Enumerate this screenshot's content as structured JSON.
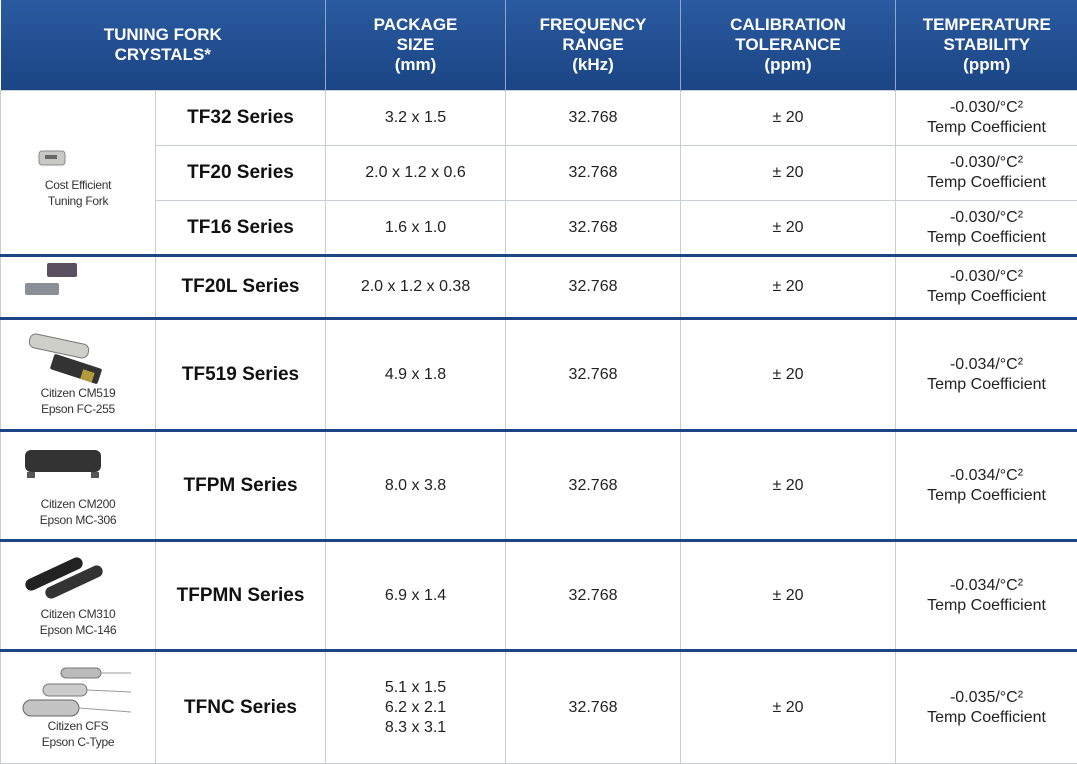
{
  "header": {
    "columns": [
      [
        "TUNING FORK",
        "CRYSTALS*"
      ],
      [
        "PACKAGE",
        "SIZE",
        "(mm)"
      ],
      [
        "FREQUENCY",
        "RANGE",
        "(kHz)"
      ],
      [
        "CALIBRATION",
        "TOLERANCE",
        "(ppm)"
      ],
      [
        "TEMPERATURE",
        "STABILITY",
        "(ppm)"
      ]
    ]
  },
  "groups": [
    {
      "caption": [
        "Cost Efficient",
        "Tuning Fork"
      ],
      "rows": [
        {
          "series": "TF32 Series",
          "package": [
            "3.2 x 1.5"
          ],
          "frequency": "32.768",
          "tolerance": "± 20",
          "stability": [
            "-0.030/°C²",
            "Temp Coefficient"
          ]
        },
        {
          "series": "TF20 Series",
          "package": [
            "2.0 x 1.2 x 0.6"
          ],
          "frequency": "32.768",
          "tolerance": "± 20",
          "stability": [
            "-0.030/°C²",
            "Temp Coefficient"
          ]
        },
        {
          "series": "TF16 Series",
          "package": [
            "1.6 x 1.0"
          ],
          "frequency": "32.768",
          "tolerance": "± 20",
          "stability": [
            "-0.030/°C²",
            "Temp Coefficient"
          ]
        }
      ]
    },
    {
      "caption": [],
      "rows": [
        {
          "series": "TF20L Series",
          "package": [
            "2.0 x 1.2 x 0.38"
          ],
          "frequency": "32.768",
          "tolerance": "± 20",
          "stability": [
            "-0.030/°C²",
            "Temp Coefficient"
          ]
        }
      ]
    },
    {
      "caption": [
        "Citizen CM519",
        "Epson FC-255"
      ],
      "rows": [
        {
          "series": "TF519 Series",
          "package": [
            "4.9 x 1.8"
          ],
          "frequency": "32.768",
          "tolerance": "± 20",
          "stability": [
            "-0.034/°C²",
            "Temp Coefficient"
          ]
        }
      ]
    },
    {
      "caption": [
        "Citizen CM200",
        "Epson MC-306"
      ],
      "rows": [
        {
          "series": "TFPM Series",
          "package": [
            "8.0 x 3.8"
          ],
          "frequency": "32.768",
          "tolerance": "± 20",
          "stability": [
            "-0.034/°C²",
            "Temp Coefficient"
          ]
        }
      ]
    },
    {
      "caption": [
        "Citizen CM310",
        "Epson MC-146"
      ],
      "rows": [
        {
          "series": "TFPMN Series",
          "package": [
            "6.9 x 1.4"
          ],
          "frequency": "32.768",
          "tolerance": "± 20",
          "stability": [
            "-0.034/°C²",
            "Temp Coefficient"
          ]
        }
      ]
    },
    {
      "caption": [
        "Citizen CFS",
        "Epson C-Type"
      ],
      "rows": [
        {
          "series": "TFNC Series",
          "package": [
            "5.1 x 1.5",
            "6.2 x 2.1",
            "8.3 x 3.1"
          ],
          "frequency": "32.768",
          "tolerance": "± 20",
          "stability": [
            "-0.035/°C²",
            "Temp Coefficient"
          ]
        }
      ]
    }
  ]
}
